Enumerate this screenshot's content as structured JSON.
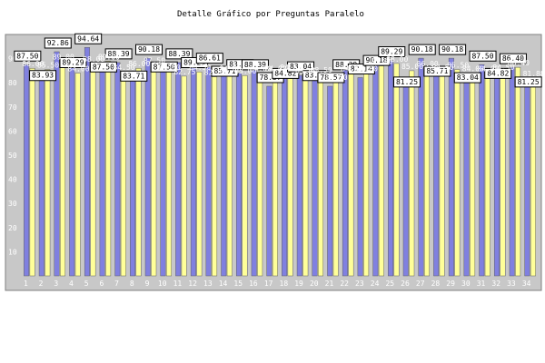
{
  "chart_data": {
    "type": "bar",
    "title": "Detalle Gráfico por Preguntas Paralelo",
    "xlabel": "",
    "ylabel": "",
    "ylim": [
      0,
      100
    ],
    "yticks": [
      10,
      20,
      30,
      40,
      50,
      60,
      70,
      80,
      90
    ],
    "grid": false,
    "categories": [
      "1",
      "2",
      "3",
      "4",
      "5",
      "6",
      "7",
      "8",
      "9",
      "10",
      "11",
      "12",
      "13",
      "14",
      "15",
      "16",
      "17",
      "18",
      "19",
      "20",
      "21",
      "22",
      "23",
      "24",
      "25",
      "26",
      "27",
      "28",
      "29",
      "30",
      "31",
      "32",
      "33",
      "34"
    ],
    "series": [
      {
        "color": "#8080e0",
        "values": [
          87.5,
          83.93,
          92.86,
          89.29,
          94.64,
          87.5,
          88.39,
          83.71,
          90.18,
          87.5,
          88.39,
          89.29,
          86.61,
          85.71,
          83.93,
          88.39,
          78.57,
          84.82,
          83.04,
          83.93,
          78.57,
          88.39,
          82.14,
          90.18,
          89.29,
          81.25,
          90.18,
          85.71,
          90.18,
          83.04,
          87.5,
          84.82,
          86.4,
          81.25
        ]
      },
      {
        "color": "#ffff99",
        "values": [
          86.0,
          85.5,
          89.0,
          84.0,
          88.0,
          89.0,
          84.5,
          86.0,
          87.5,
          84.5,
          82.75,
          84.5,
          82.5,
          84.0,
          83.0,
          84.0,
          84.0,
          84.5,
          83.0,
          83.5,
          80.5,
          84.0,
          84.0,
          87.0,
          88.0,
          85.0,
          86.0,
          84.5,
          85.5,
          84.0,
          84.0,
          84.5,
          86.4,
          81.88
        ]
      }
    ]
  }
}
